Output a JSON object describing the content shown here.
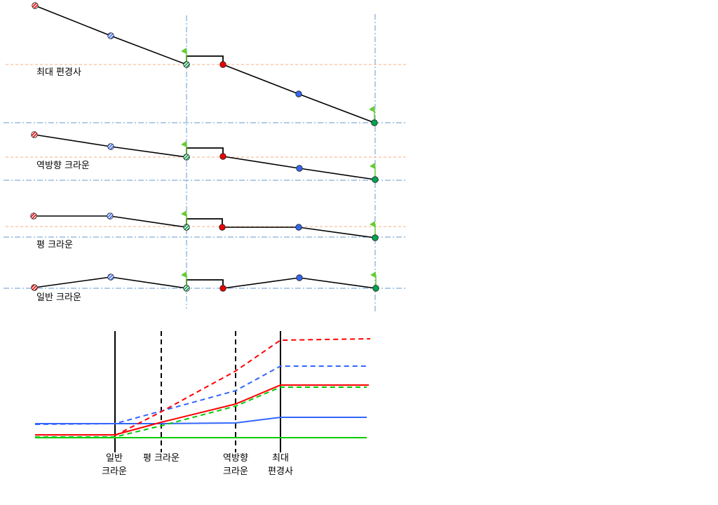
{
  "sections": [
    {
      "label": "최대 편경사"
    },
    {
      "label": "역방향 크라운"
    },
    {
      "label": "평 크라운"
    },
    {
      "label": "일반 크라운"
    }
  ],
  "bottom_labels": [
    {
      "line1": "일반",
      "line2": "크라운"
    },
    {
      "line1": "평 크라운",
      "line2": ""
    },
    {
      "line1": "역방향",
      "line2": "크라운"
    },
    {
      "line1": "최대",
      "line2": "편경사"
    }
  ],
  "colors": {
    "red": "#ff0000",
    "blue": "#3366ff",
    "green": "#00cc00",
    "flag": "#66cc33",
    "guide_blue": "#6699cc",
    "guide_orange": "#f4b183"
  }
}
